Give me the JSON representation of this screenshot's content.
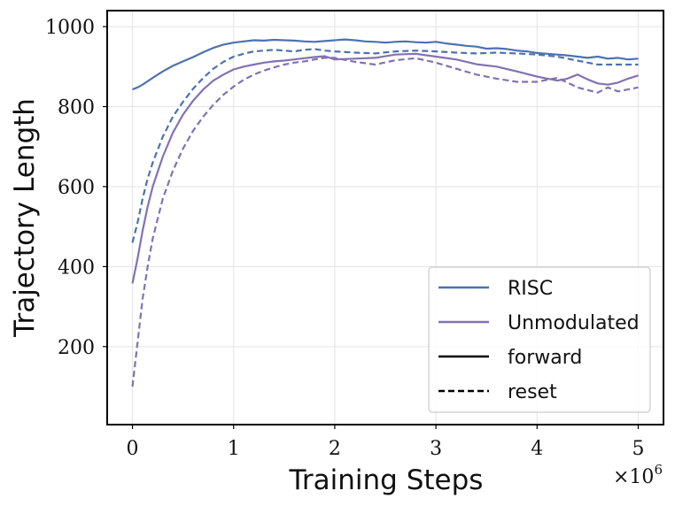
{
  "chart_data": {
    "type": "line",
    "title": "",
    "xlabel": "Training Steps",
    "ylabel": "Trajectory Length",
    "x_multiplier_label": "×10",
    "x_multiplier_exp": "6",
    "xlim": [
      -0.25,
      5.25
    ],
    "ylim": [
      5,
      1040
    ],
    "xticks": [
      0,
      1,
      2,
      3,
      4,
      5
    ],
    "xtick_labels": [
      "0",
      "1",
      "2",
      "3",
      "4",
      "5"
    ],
    "yticks": [
      200,
      400,
      600,
      800,
      1000
    ],
    "ytick_labels": [
      "200",
      "400",
      "600",
      "800",
      "1000"
    ],
    "grid": true,
    "legend": {
      "placement": "bottom-right",
      "entries": [
        {
          "label": "RISC",
          "kind": "color",
          "color": "#4c72b0"
        },
        {
          "label": "Unmodulated",
          "kind": "color",
          "color": "#8172b3"
        },
        {
          "label": "forward",
          "kind": "style",
          "style": "solid",
          "color": "#000000"
        },
        {
          "label": "reset",
          "kind": "style",
          "style": "dashed",
          "color": "#000000"
        }
      ]
    },
    "series": [
      {
        "name": "RISC forward",
        "color": "#4c72b0",
        "style": "solid",
        "x": [
          0,
          0.05,
          0.1,
          0.2,
          0.3,
          0.4,
          0.5,
          0.6,
          0.7,
          0.8,
          0.9,
          1.0,
          1.1,
          1.2,
          1.3,
          1.4,
          1.5,
          1.6,
          1.7,
          1.8,
          1.9,
          2.0,
          2.1,
          2.2,
          2.3,
          2.4,
          2.5,
          2.6,
          2.7,
          2.8,
          2.9,
          3.0,
          3.1,
          3.2,
          3.3,
          3.4,
          3.5,
          3.6,
          3.7,
          3.8,
          3.9,
          4.0,
          4.1,
          4.2,
          4.3,
          4.4,
          4.5,
          4.6,
          4.7,
          4.8,
          4.9,
          5.0
        ],
        "values": [
          843,
          848,
          855,
          872,
          888,
          902,
          913,
          924,
          936,
          947,
          955,
          960,
          963,
          966,
          965,
          967,
          966,
          965,
          963,
          962,
          964,
          966,
          968,
          966,
          963,
          962,
          960,
          962,
          963,
          961,
          960,
          962,
          958,
          955,
          952,
          950,
          945,
          946,
          944,
          940,
          938,
          934,
          932,
          930,
          928,
          925,
          922,
          925,
          920,
          922,
          918,
          920
        ]
      },
      {
        "name": "RISC reset",
        "color": "#4c72b0",
        "style": "dashed",
        "x": [
          0,
          0.05,
          0.1,
          0.15,
          0.2,
          0.3,
          0.4,
          0.5,
          0.6,
          0.7,
          0.8,
          0.9,
          1.0,
          1.1,
          1.2,
          1.3,
          1.4,
          1.5,
          1.6,
          1.7,
          1.8,
          1.9,
          2.0,
          2.2,
          2.4,
          2.6,
          2.8,
          3.0,
          3.2,
          3.4,
          3.6,
          3.8,
          4.0,
          4.2,
          4.4,
          4.6,
          4.8,
          5.0
        ],
        "values": [
          460,
          510,
          570,
          620,
          660,
          725,
          775,
          812,
          845,
          872,
          895,
          912,
          925,
          932,
          938,
          940,
          942,
          940,
          938,
          942,
          944,
          940,
          938,
          935,
          933,
          938,
          940,
          938,
          935,
          933,
          935,
          933,
          930,
          925,
          915,
          905,
          905,
          905
        ]
      },
      {
        "name": "Unmodulated forward",
        "color": "#8172b3",
        "style": "solid",
        "x": [
          0,
          0.05,
          0.1,
          0.15,
          0.2,
          0.3,
          0.4,
          0.5,
          0.6,
          0.7,
          0.8,
          0.9,
          1.0,
          1.1,
          1.2,
          1.3,
          1.4,
          1.5,
          1.6,
          1.7,
          1.8,
          1.9,
          2.0,
          2.2,
          2.4,
          2.6,
          2.8,
          3.0,
          3.2,
          3.4,
          3.6,
          3.8,
          4.0,
          4.2,
          4.3,
          4.4,
          4.5,
          4.6,
          4.7,
          4.8,
          4.9,
          5.0
        ],
        "values": [
          358,
          420,
          490,
          550,
          600,
          675,
          735,
          780,
          815,
          843,
          865,
          880,
          893,
          900,
          905,
          910,
          913,
          915,
          918,
          921,
          924,
          926,
          918,
          920,
          922,
          930,
          932,
          925,
          918,
          906,
          900,
          888,
          875,
          865,
          870,
          880,
          868,
          858,
          855,
          860,
          870,
          878
        ]
      },
      {
        "name": "Unmodulated reset",
        "color": "#8172b3",
        "style": "dashed",
        "x": [
          0,
          0.05,
          0.1,
          0.15,
          0.2,
          0.3,
          0.4,
          0.5,
          0.6,
          0.7,
          0.8,
          0.9,
          1.0,
          1.1,
          1.2,
          1.3,
          1.4,
          1.5,
          1.6,
          1.7,
          1.8,
          1.9,
          2.0,
          2.2,
          2.4,
          2.6,
          2.8,
          3.0,
          3.2,
          3.4,
          3.6,
          3.8,
          4.0,
          4.2,
          4.4,
          4.6,
          4.7,
          4.8,
          4.9,
          5.0
        ],
        "values": [
          100,
          210,
          320,
          400,
          470,
          570,
          640,
          695,
          740,
          775,
          805,
          830,
          850,
          867,
          880,
          890,
          898,
          905,
          910,
          913,
          918,
          922,
          922,
          912,
          905,
          916,
          921,
          910,
          895,
          880,
          870,
          862,
          862,
          872,
          848,
          835,
          848,
          838,
          843,
          848
        ]
      }
    ]
  }
}
